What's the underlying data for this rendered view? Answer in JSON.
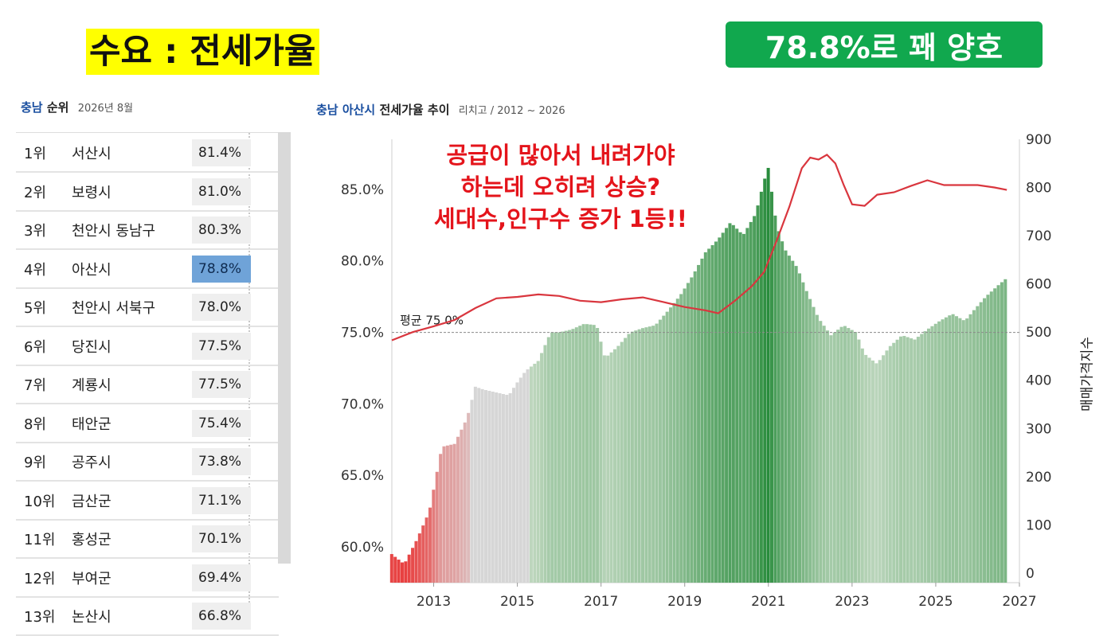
{
  "headline": "수요 : 전세가율",
  "badge": "78.8%로 꽤 양호",
  "ranking": {
    "region": "충남",
    "title": "순위",
    "date": "2026년 8월",
    "rows": [
      {
        "rank": "1위",
        "city": "서산시",
        "value": "81.4%"
      },
      {
        "rank": "2위",
        "city": "보령시",
        "value": "81.0%"
      },
      {
        "rank": "3위",
        "city": "천안시 동남구",
        "value": "80.3%"
      },
      {
        "rank": "4위",
        "city": "아산시",
        "value": "78.8%"
      },
      {
        "rank": "5위",
        "city": "천안시 서북구",
        "value": "78.0%"
      },
      {
        "rank": "6위",
        "city": "당진시",
        "value": "77.5%"
      },
      {
        "rank": "7위",
        "city": "계룡시",
        "value": "77.5%"
      },
      {
        "rank": "8위",
        "city": "태안군",
        "value": "75.4%"
      },
      {
        "rank": "9위",
        "city": "공주시",
        "value": "73.8%"
      },
      {
        "rank": "10위",
        "city": "금산군",
        "value": "71.1%"
      },
      {
        "rank": "11위",
        "city": "홍성군",
        "value": "70.1%"
      },
      {
        "rank": "12위",
        "city": "부여군",
        "value": "69.4%"
      },
      {
        "rank": "13위",
        "city": "논산시",
        "value": "66.8%"
      }
    ],
    "selected_index": 3
  },
  "chart_title": {
    "region": "충남 아산시",
    "title": "전세가율 추이",
    "source": "리치고 / 2012 ~ 2026"
  },
  "annotation": [
    "공급이 많아서 내려가야",
    "하는데 오히려 상승?",
    "세대수,인구수 증가 1등!!"
  ],
  "chart_data": {
    "type": "bar",
    "xlim": [
      2012,
      2027
    ],
    "x_ticks": [
      "2013",
      "2015",
      "2017",
      "2019",
      "2021",
      "2023",
      "2025",
      "2027"
    ],
    "ylabel": "",
    "ylim": [
      57.5,
      88.5
    ],
    "y_ticks": [
      "60.0%",
      "65.0%",
      "70.0%",
      "75.0%",
      "80.0%",
      "85.0%"
    ],
    "y2label": "매매가격지수",
    "y2lim": [
      -20,
      900
    ],
    "y2_ticks": [
      "0",
      "100",
      "200",
      "300",
      "400",
      "500",
      "600",
      "700",
      "800",
      "900"
    ],
    "average": {
      "label": "평균 75.0%",
      "value": 75.0
    },
    "series": [
      {
        "name": "전세가율",
        "type": "bar",
        "points": [
          [
            2012.0,
            59.5
          ],
          [
            2012.3,
            58.8
          ],
          [
            2012.6,
            60.5
          ],
          [
            2012.9,
            62.5
          ],
          [
            2013.2,
            67.0
          ],
          [
            2013.5,
            67.2
          ],
          [
            2013.8,
            69.0
          ],
          [
            2014.0,
            71.2
          ],
          [
            2014.2,
            71.0
          ],
          [
            2014.5,
            70.8
          ],
          [
            2014.8,
            70.6
          ],
          [
            2015.0,
            71.5
          ],
          [
            2015.2,
            72.3
          ],
          [
            2015.5,
            73.0
          ],
          [
            2015.8,
            75.0
          ],
          [
            2016.0,
            75.0
          ],
          [
            2016.3,
            75.2
          ],
          [
            2016.6,
            75.6
          ],
          [
            2016.9,
            75.5
          ],
          [
            2017.1,
            73.2
          ],
          [
            2017.4,
            74.0
          ],
          [
            2017.7,
            75.0
          ],
          [
            2018.0,
            75.3
          ],
          [
            2018.3,
            75.5
          ],
          [
            2018.6,
            76.5
          ],
          [
            2018.9,
            77.6
          ],
          [
            2019.2,
            79.0
          ],
          [
            2019.5,
            80.6
          ],
          [
            2019.8,
            81.5
          ],
          [
            2020.1,
            82.7
          ],
          [
            2020.4,
            81.8
          ],
          [
            2020.7,
            83.3
          ],
          [
            2020.9,
            85.6
          ],
          [
            2021.0,
            86.5
          ],
          [
            2021.2,
            82.5
          ],
          [
            2021.4,
            80.8
          ],
          [
            2021.7,
            79.5
          ],
          [
            2021.9,
            78.0
          ],
          [
            2022.2,
            76.0
          ],
          [
            2022.5,
            74.8
          ],
          [
            2022.8,
            75.5
          ],
          [
            2023.1,
            75.0
          ],
          [
            2023.3,
            73.5
          ],
          [
            2023.6,
            72.8
          ],
          [
            2023.9,
            74.0
          ],
          [
            2024.2,
            74.8
          ],
          [
            2024.5,
            74.5
          ],
          [
            2024.8,
            75.2
          ],
          [
            2025.1,
            75.8
          ],
          [
            2025.4,
            76.3
          ],
          [
            2025.7,
            75.8
          ],
          [
            2025.9,
            76.5
          ],
          [
            2026.2,
            77.5
          ],
          [
            2026.5,
            78.3
          ],
          [
            2026.7,
            78.8
          ]
        ]
      },
      {
        "name": "매매가격지수",
        "type": "line",
        "color": "#d9363e",
        "points": [
          [
            2012.0,
            483
          ],
          [
            2012.5,
            500
          ],
          [
            2013.0,
            512
          ],
          [
            2013.5,
            525
          ],
          [
            2014.0,
            550
          ],
          [
            2014.5,
            570
          ],
          [
            2015.0,
            573
          ],
          [
            2015.5,
            578
          ],
          [
            2016.0,
            575
          ],
          [
            2016.5,
            565
          ],
          [
            2017.0,
            562
          ],
          [
            2017.5,
            568
          ],
          [
            2018.0,
            572
          ],
          [
            2018.5,
            562
          ],
          [
            2019.0,
            552
          ],
          [
            2019.5,
            545
          ],
          [
            2019.8,
            539
          ],
          [
            2020.2,
            565
          ],
          [
            2020.6,
            595
          ],
          [
            2020.9,
            625
          ],
          [
            2021.2,
            690
          ],
          [
            2021.5,
            760
          ],
          [
            2021.8,
            840
          ],
          [
            2022.0,
            862
          ],
          [
            2022.2,
            858
          ],
          [
            2022.4,
            868
          ],
          [
            2022.6,
            850
          ],
          [
            2022.8,
            805
          ],
          [
            2023.0,
            765
          ],
          [
            2023.3,
            762
          ],
          [
            2023.6,
            785
          ],
          [
            2024.0,
            790
          ],
          [
            2024.4,
            803
          ],
          [
            2024.8,
            815
          ],
          [
            2025.2,
            805
          ],
          [
            2025.6,
            805
          ],
          [
            2026.0,
            805
          ],
          [
            2026.4,
            800
          ],
          [
            2026.7,
            795
          ]
        ]
      }
    ]
  }
}
